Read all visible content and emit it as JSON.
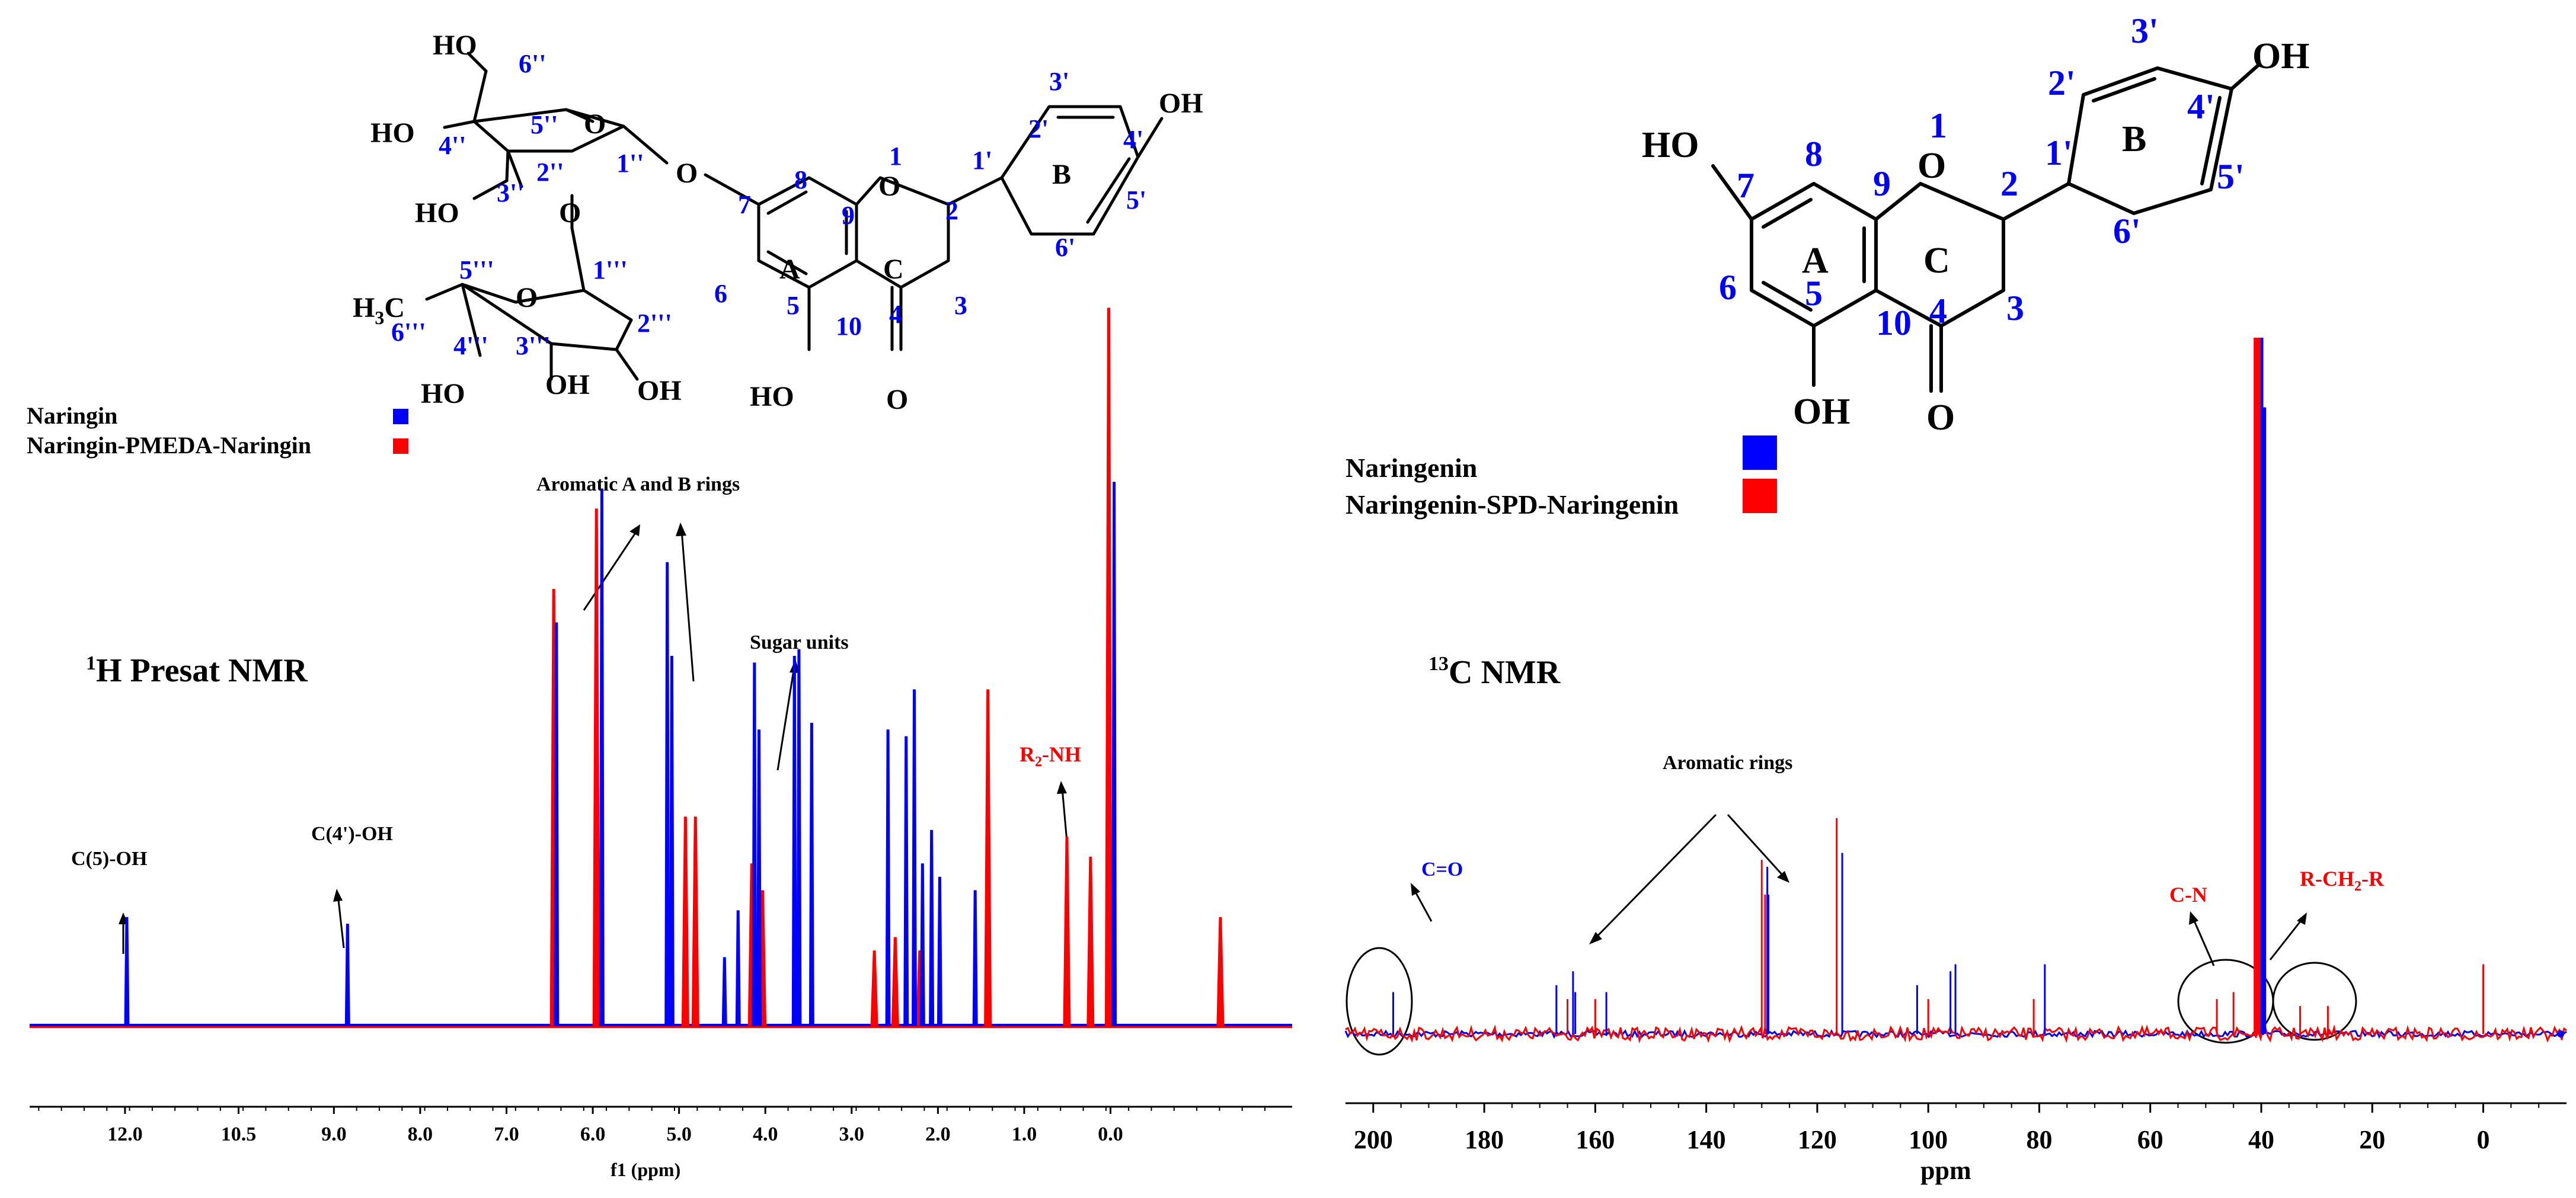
{
  "colors": {
    "series_a": "#0000ff",
    "series_b": "#ff0000",
    "axis": "#000000"
  },
  "chart_data": [
    {
      "type": "line",
      "title": "1H Presat NMR",
      "xlabel": "f1 (ppm)",
      "ylabel": "",
      "xlim": [
        13.1,
        -0.8
      ],
      "x_reversed": true,
      "grid": false,
      "legend_position": "top-left",
      "x_ticks": [
        "12.0",
        "10.5",
        "9.0",
        "8.0",
        "7.0",
        "6.0",
        "5.0",
        "4.0",
        "3.0",
        "2.0",
        "1.0",
        "0.0"
      ],
      "x_tick_values": [
        12.05,
        10.8,
        9.75,
        8.8,
        7.85,
        6.9,
        5.95,
        5.0,
        4.05,
        3.1,
        2.15,
        1.2
      ],
      "series": [
        {
          "name": "Naringin",
          "peaks": [
            [
              12.03,
              0.16
            ],
            [
              9.6,
              0.15
            ],
            [
              7.3,
              0.6
            ],
            [
              6.8,
              0.8
            ],
            [
              6.08,
              0.69
            ],
            [
              6.03,
              0.55
            ],
            [
              5.45,
              0.1
            ],
            [
              5.3,
              0.17
            ],
            [
              5.12,
              0.54
            ],
            [
              5.07,
              0.44
            ],
            [
              4.68,
              0.55
            ],
            [
              4.63,
              0.56
            ],
            [
              4.49,
              0.45
            ],
            [
              3.65,
              0.44
            ],
            [
              3.45,
              0.43
            ],
            [
              3.36,
              0.5
            ],
            [
              3.27,
              0.24
            ],
            [
              3.17,
              0.29
            ],
            [
              3.08,
              0.22
            ],
            [
              2.69,
              0.2
            ],
            [
              1.16,
              0.81
            ]
          ]
        },
        {
          "name": "Naringin-PMEDA-Naringin",
          "peaks": [
            [
              7.33,
              0.65
            ],
            [
              6.86,
              0.77
            ],
            [
              5.88,
              0.31
            ],
            [
              5.77,
              0.31
            ],
            [
              5.15,
              0.24
            ],
            [
              5.03,
              0.2
            ],
            [
              3.8,
              0.11
            ],
            [
              3.57,
              0.13
            ],
            [
              3.3,
              0.11
            ],
            [
              2.55,
              0.5
            ],
            [
              1.68,
              0.28
            ],
            [
              1.42,
              0.25
            ],
            [
              1.22,
              1.07
            ],
            [
              -0.01,
              0.16
            ]
          ]
        }
      ],
      "annotations": [
        "Aromatic A and B rings",
        "Sugar units",
        "C(5)-OH",
        "C(4')-OH",
        "R2-NH"
      ]
    },
    {
      "type": "line",
      "title": "13C NMR",
      "xlabel": "ppm",
      "ylabel": "",
      "xlim": [
        205,
        -15
      ],
      "x_reversed": true,
      "grid": false,
      "legend_position": "top-left",
      "x_ticks": [
        "200",
        "180",
        "160",
        "140",
        "120",
        "100",
        "80",
        "60",
        "40",
        "20",
        "0"
      ],
      "x_tick_values": [
        200,
        180,
        160,
        140,
        120,
        100,
        80,
        60,
        40,
        20,
        0
      ],
      "series": [
        {
          "name": "Naringenin",
          "peaks": [
            [
              196.4,
              0.06
            ],
            [
              167,
              0.07
            ],
            [
              164,
              0.09
            ],
            [
              163.6,
              0.06
            ],
            [
              158,
              0.06
            ],
            [
              129,
              0.24
            ],
            [
              128.8,
              0.2
            ],
            [
              115.5,
              0.26
            ],
            [
              102,
              0.07
            ],
            [
              96,
              0.09
            ],
            [
              95.1,
              0.1
            ],
            [
              79,
              0.1
            ],
            [
              40,
              1.0
            ],
            [
              39.5,
              0.9
            ]
          ]
        },
        {
          "name": "Naringenin-SPD-Naringenin",
          "peaks": [
            [
              165,
              0.05
            ],
            [
              160,
              0.05
            ],
            [
              130,
              0.25
            ],
            [
              129.4,
              0.2
            ],
            [
              116.5,
              0.31
            ],
            [
              100,
              0.05
            ],
            [
              81,
              0.05
            ],
            [
              48,
              0.05
            ],
            [
              45,
              0.06
            ],
            [
              41,
              1.0
            ],
            [
              40.5,
              1.0
            ],
            [
              33,
              0.04
            ],
            [
              28,
              0.04
            ],
            [
              0,
              0.1
            ]
          ]
        }
      ],
      "annotations": [
        "Aromatic rings",
        "C=O",
        "C-N",
        "R-CH2-R"
      ]
    }
  ],
  "panel1": {
    "legend": [
      "Naringin",
      "Naringin-PMEDA-Naringin"
    ],
    "title_sup": "1",
    "title_rest": "H Presat NMR",
    "xlabel": "f1 (ppm)",
    "ticks": [
      "12.0",
      "10.5",
      "9.0",
      "8.0",
      "7.0",
      "6.0",
      "5.0",
      "4.0",
      "3.0",
      "2.0",
      "1.0",
      "0.0"
    ],
    "ann_aromatic": "Aromatic A and B rings",
    "ann_sugar": "Sugar units",
    "ann_c5": "C(5)-OH",
    "ann_c4": "C(4')-OH",
    "ann_r2_main": "R",
    "ann_r2_sub": "2",
    "ann_r2_rest": "-NH"
  },
  "panel2": {
    "legend": [
      "Naringenin",
      "Naringenin-SPD-Naringenin"
    ],
    "title_sup": "13",
    "title_rest": "C NMR",
    "xlabel": "ppm",
    "ticks": [
      "200",
      "180",
      "160",
      "140",
      "120",
      "100",
      "80",
      "60",
      "40",
      "20",
      "0"
    ],
    "ann_aromatic": "Aromatic rings",
    "ann_co": "C=O",
    "ann_cn": "C-N",
    "ann_rch_a": "R-CH",
    "ann_rch_sub": "2",
    "ann_rch_b": "-R"
  },
  "naringin_structure": {
    "ho_6pp": "HO",
    "lbl_6pp": "6''",
    "lbl_5pp": "5''",
    "ho_4pp": "HO",
    "lbl_4pp": "4''",
    "o_ring1": "O",
    "lbl_1pp": "1''",
    "lbl_2pp": "2''",
    "lbl_3pp": "3''",
    "ho_3pp": "HO",
    "o_glyco": "O",
    "o_link": "O",
    "lbl_5ppp": "5'''",
    "lbl_1ppp": "1'''",
    "o_ring2": "O",
    "h3c_h": "H",
    "h3c_3": "3",
    "h3c_c": "C",
    "lbl_6ppp": "6'''",
    "lbl_4ppp": "4'''",
    "lbl_3ppp": "3'''",
    "lbl_2ppp": "2'''",
    "ho_4ppp": "HO",
    "oh_3ppp": "OH",
    "oh_2ppp": "OH",
    "lbl_7": "7",
    "lbl_8": "8",
    "lbl_9": "9",
    "lbl_1": "1",
    "o_1": "O",
    "lbl_2": "2",
    "lbl_3": "3",
    "lbl_4": "4",
    "lbl_5": "5",
    "lbl_6": "6",
    "lbl_10": "10",
    "ring_a": "A",
    "ring_c": "C",
    "ring_b": "B",
    "ho_5": "HO",
    "o_4": "O",
    "lbl_1p": "1'",
    "lbl_2p": "2'",
    "lbl_3p": "3'",
    "lbl_4p": "4'",
    "lbl_5p": "5'",
    "lbl_6p": "6'",
    "oh_4p": "OH"
  },
  "naringenin_structure": {
    "ho_7": "HO",
    "lbl_7": "7",
    "lbl_8": "8",
    "lbl_9": "9",
    "lbl_1": "1",
    "o_1": "O",
    "lbl_2": "2",
    "lbl_3": "3",
    "lbl_4": "4",
    "lbl_5": "5",
    "lbl_6": "6",
    "lbl_10": "10",
    "ring_a": "A",
    "ring_c": "C",
    "ring_b": "B",
    "oh_5": "OH",
    "o_4": "O",
    "lbl_1p": "1'",
    "lbl_2p": "2'",
    "lbl_3p": "3'",
    "lbl_4p": "4'",
    "lbl_5p": "5'",
    "lbl_6p": "6'",
    "oh_4p": "OH"
  }
}
